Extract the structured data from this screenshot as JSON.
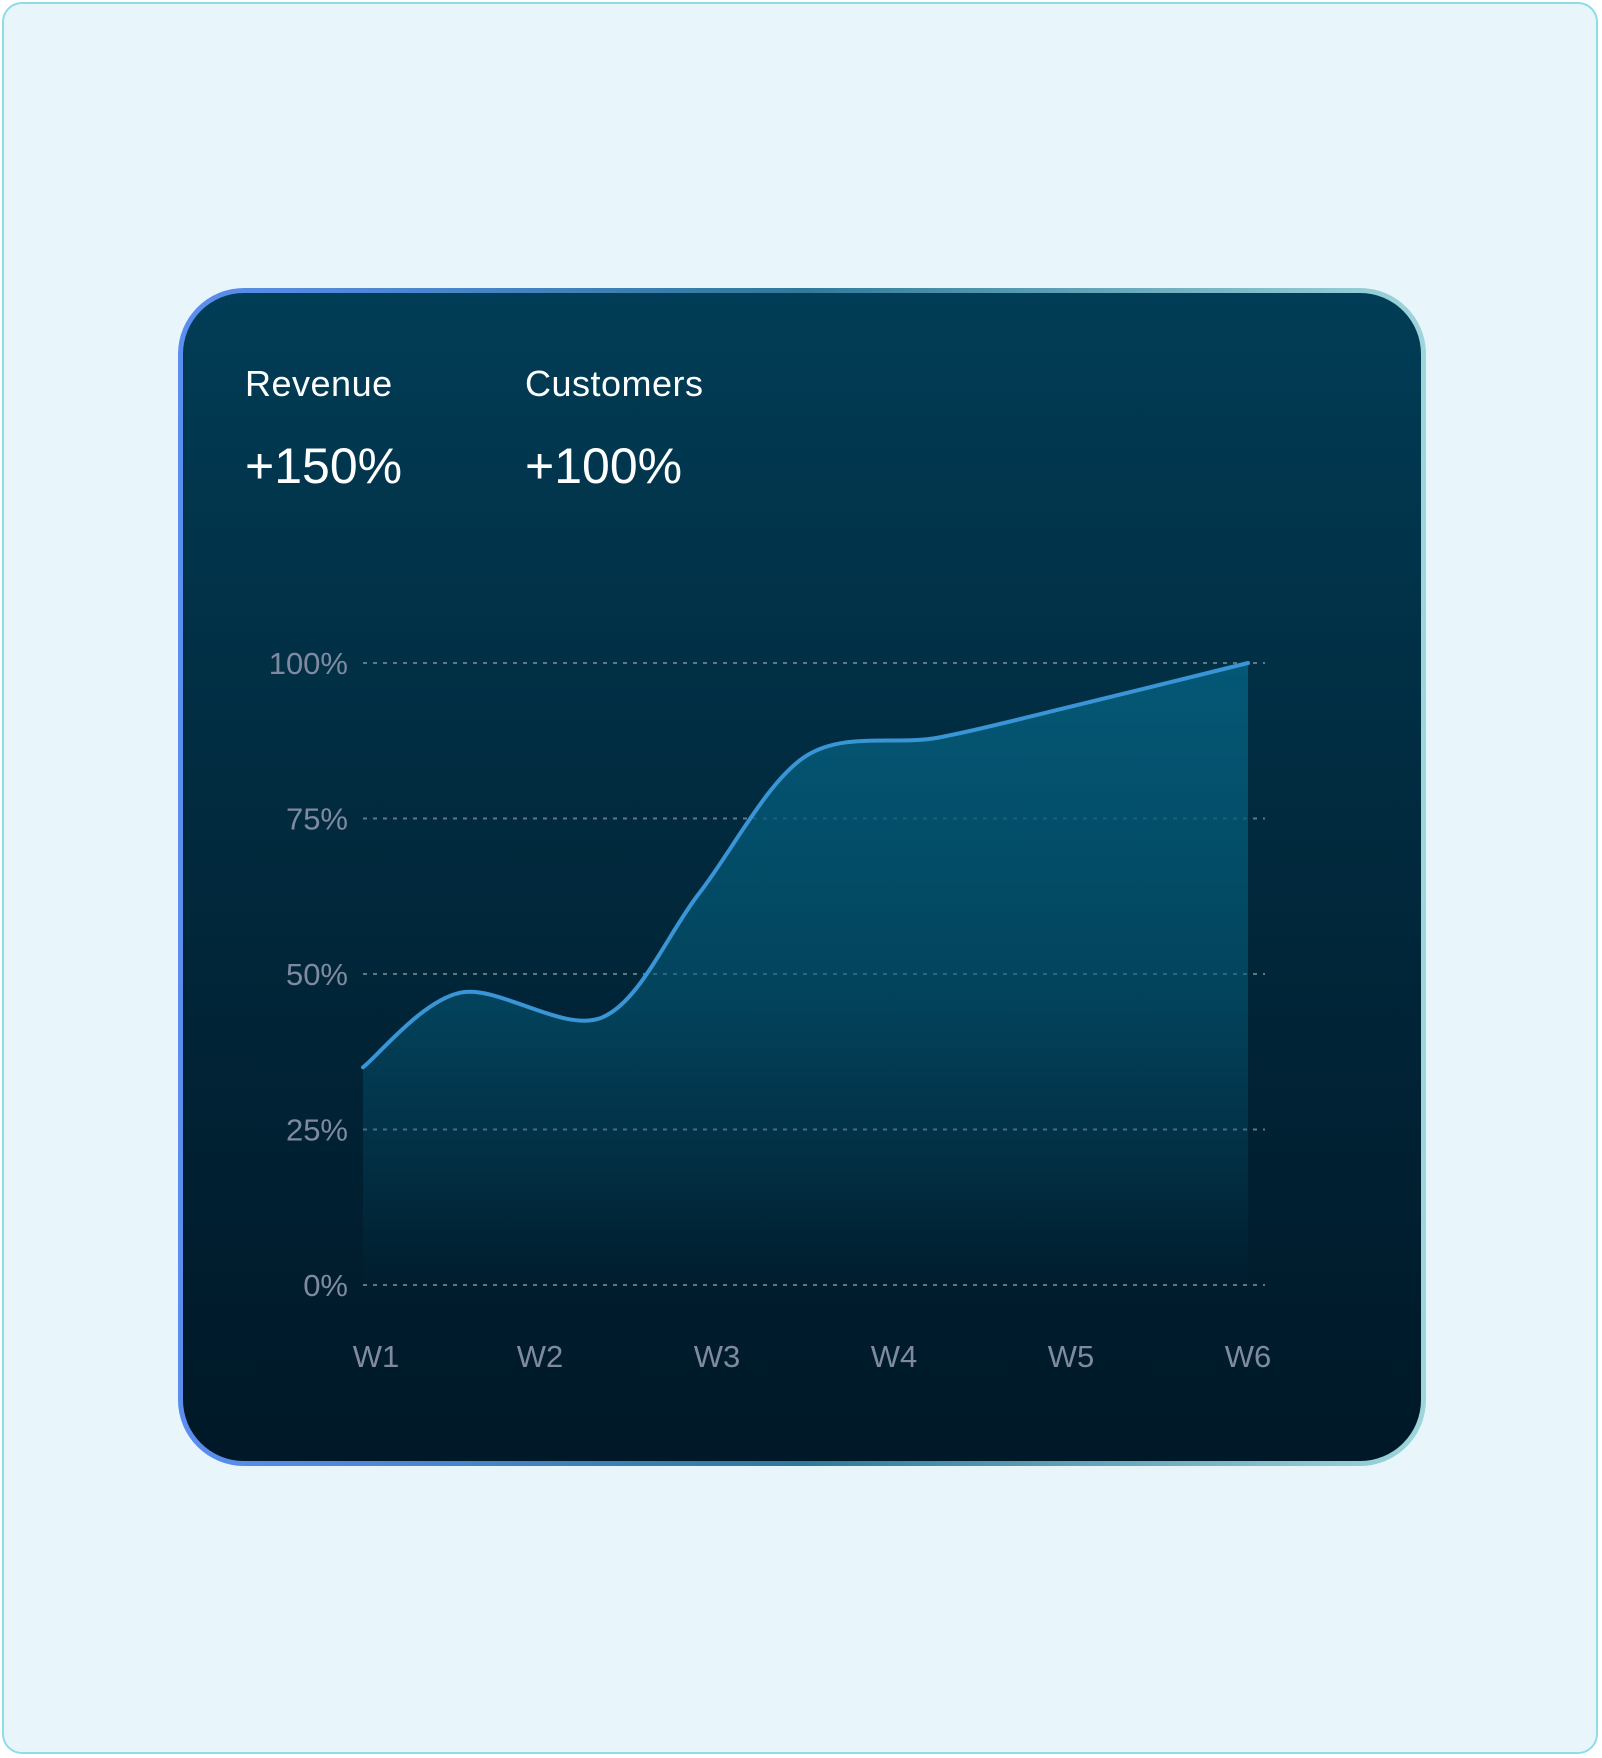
{
  "metrics": [
    {
      "label": "Revenue",
      "value": "+150%"
    },
    {
      "label": "Customers",
      "value": "+100%"
    }
  ],
  "colors": {
    "page_background": "#e8f6fc",
    "card_background_top": "#013d56",
    "card_background_bottom": "#001827",
    "line": "#3a95d6",
    "area_fill": "#045a78",
    "grid": "#8391a6",
    "tick_text": "#7f8aa1"
  },
  "chart_data": {
    "type": "area",
    "title": "",
    "xlabel": "",
    "ylabel": "",
    "categories": [
      "W1",
      "W2",
      "W3",
      "W4",
      "W5",
      "W6"
    ],
    "y_tick_labels": [
      "0%",
      "25%",
      "50%",
      "75%",
      "100%"
    ],
    "ylim": [
      0,
      100
    ],
    "grid": "horizontal dotted",
    "legend": "none",
    "series": [
      {
        "x": [
          1.0,
          1.55,
          2.35,
          2.9,
          3.5,
          4.25,
          5.0,
          6.0
        ],
        "values": [
          35,
          47,
          43,
          63,
          85,
          88,
          93,
          100
        ]
      }
    ]
  }
}
